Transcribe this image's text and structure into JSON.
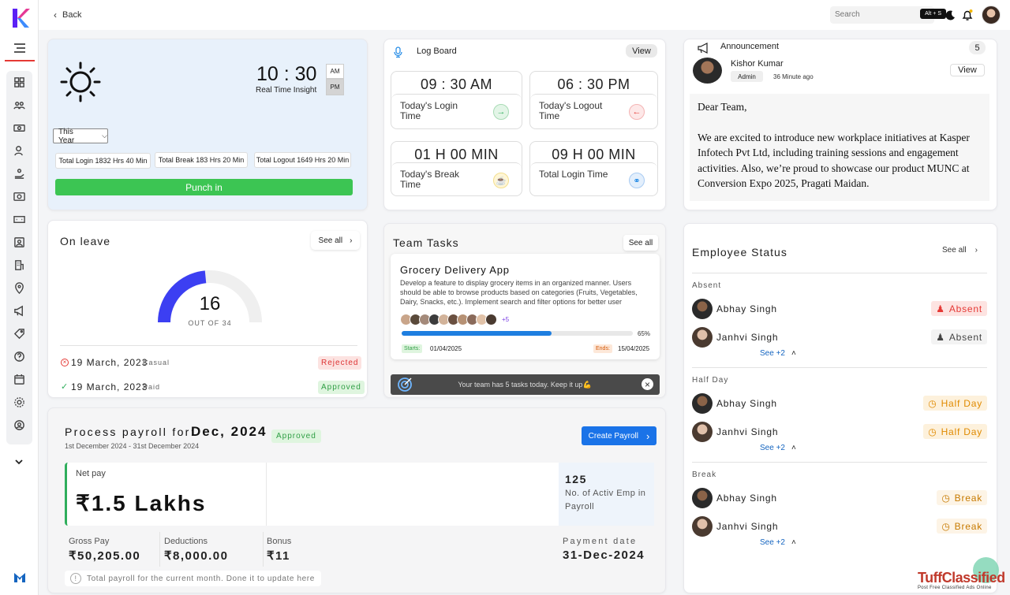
{
  "app": {
    "brand_color": "#5b21f5",
    "accent_red": "#e53935"
  },
  "topbar": {
    "back_label": "Back",
    "search_placeholder": "Search",
    "shortcut": "Alt + S"
  },
  "sidebar": {
    "icons": [
      "dashboard-icon",
      "team-icon",
      "money-icon",
      "user-icon",
      "hand-icon",
      "payroll-icon",
      "cash-icon",
      "badge-icon",
      "building-icon",
      "location-icon",
      "megaphone-icon",
      "tag-icon",
      "help-icon",
      "calendar-icon",
      "settings-icon",
      "profile-icon"
    ]
  },
  "clock": {
    "time": "10 : 30",
    "subtitle": "Real Time Insight",
    "am": "AM",
    "pm": "PM",
    "period_select": "This Year",
    "total_login": "Total Login 1832 Hrs 40 Min",
    "total_break": "Total Break 183 Hrs 20 Min",
    "total_logout": "Total Logout 1649 Hrs 20 Min",
    "punch_label": "Punch in"
  },
  "logboard": {
    "title": "Log Board",
    "view_label": "View",
    "items": [
      {
        "value": "09 : 30  AM",
        "label": "Today's Login Time"
      },
      {
        "value": "06 : 30  PM",
        "label": "Today's Logout Time"
      },
      {
        "value": "01 H 00 MIN",
        "label": "Today's Break Time"
      },
      {
        "value": "09 H 00 MIN",
        "label": "Total Login Time"
      }
    ]
  },
  "announcement": {
    "title": "Announcement",
    "count": "5",
    "author": "Kishor Kumar",
    "role": "Admin",
    "time": "36 Minute ago",
    "view_label": "View",
    "greeting": "Dear Team,",
    "body": "We are excited to introduce new workplace initiatives at Kasper Infotech Pvt Ltd, including training sessions and engagement activities. Also, we’re proud to showcase our product MUNC at Conversion Expo 2025, Pragati Maidan."
  },
  "leave": {
    "title": "On leave",
    "see_all": "See all",
    "count": "16",
    "out_of": "OUT OF 34",
    "ratio": 0.47,
    "rows": [
      {
        "date": "19 March, 2023",
        "type": "Casual",
        "status": "Rejected"
      },
      {
        "date": "19 March, 2023",
        "type": "Paid",
        "status": "Approved"
      }
    ]
  },
  "tasks": {
    "title": "Team Tasks",
    "see_all": "See all",
    "task_title": "Grocery Delivery App",
    "task_desc": "Develop a feature to display grocery items in an organized manner. Users should be able to browse products based on categories (Fruits, Vegetables, Dairy, Snacks, etc.). Implement search and filter options for better user experience. E...",
    "more_members": "+5",
    "progress": 0.65,
    "progress_label": "65%",
    "starts_label": "Starts:",
    "start_date": "01/04/2025",
    "ends_label": "Ends:",
    "end_date": "15/04/2025",
    "banner": "Your team has 5 tasks today. Keep it up💪"
  },
  "payroll": {
    "title_prefix": "Process payroll for:",
    "month": "Dec, 2024",
    "status": "Approved",
    "range": "1st December 2024 - 31st December 2024",
    "create_label": "Create Payroll",
    "net_pay_label": "Net pay",
    "net_pay": "₹1.5 Lakhs",
    "emp_count": "125",
    "emp_label": "No. of Activ Emp in Payroll",
    "gross_label": "Gross Pay",
    "gross": "₹50,205.00",
    "ded_label": "Deductions",
    "ded": "₹8,000.00",
    "bonus_label": "Bonus",
    "bonus": "₹11",
    "date_label": "Payment date",
    "date": "31-Dec-2024",
    "note": "Total payroll for the current month. Done it to update here"
  },
  "status": {
    "title": "Employee Status",
    "see_all": "See all",
    "sections": [
      {
        "name": "Absent",
        "rows": [
          {
            "name": "Abhay Singh",
            "badge": "Absent"
          },
          {
            "name": "Janhvi Singh",
            "badge": "Absent"
          }
        ],
        "more": "See +2"
      },
      {
        "name": "Half Day",
        "rows": [
          {
            "name": "Abhay Singh",
            "badge": "Half Day"
          },
          {
            "name": "Janhvi Singh",
            "badge": "Half Day"
          }
        ],
        "more": "See +2"
      },
      {
        "name": "Break",
        "rows": [
          {
            "name": "Abhay Singh",
            "badge": "Break"
          },
          {
            "name": "Janhvi Singh",
            "badge": "Break"
          }
        ],
        "more": "See +2"
      }
    ]
  },
  "watermark": {
    "brand": "TuffClassified",
    "tagline": "Post Free Classified Ads Online"
  }
}
